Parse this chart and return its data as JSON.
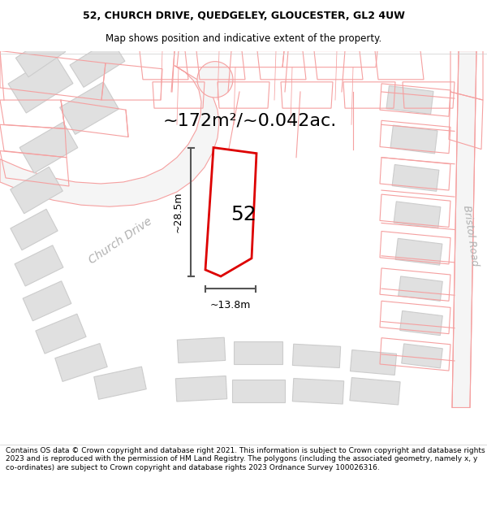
{
  "title_line1": "52, CHURCH DRIVE, QUEDGELEY, GLOUCESTER, GL2 4UW",
  "title_line2": "Map shows position and indicative extent of the property.",
  "footer_text": "Contains OS data © Crown copyright and database right 2021. This information is subject to Crown copyright and database rights 2023 and is reproduced with the permission of HM Land Registry. The polygons (including the associated geometry, namely x, y co-ordinates) are subject to Crown copyright and database rights 2023 Ordnance Survey 100026316.",
  "area_text": "~172m²/~0.042ac.",
  "number_label": "52",
  "dim_vertical": "~28.5m",
  "dim_horizontal": "~13.8m",
  "road_label_1": "Church Drive",
  "road_label_2": "Bristol Road",
  "bg_color": "#ffffff",
  "building_fill": "#e0e0e0",
  "building_edge": "#cccccc",
  "parcel_edge": "#f5a0a0",
  "road_edge": "#f5a0a0",
  "plot_outline_color": "#dd0000",
  "dim_color": "#555555",
  "road_label_color": "#aaaaaa",
  "title_fontsize": 9,
  "footer_fontsize": 6.5,
  "area_fontsize": 16,
  "number_fontsize": 18,
  "dim_fontsize": 9
}
